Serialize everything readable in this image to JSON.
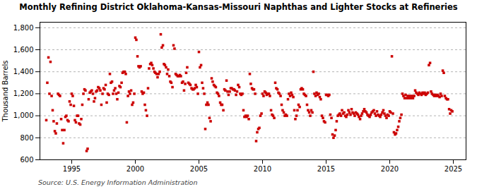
{
  "chart_data": {
    "type": "scatter",
    "title": "Monthly Refining District Oklahoma-Kansas-Missouri Naphthas and Lighter Stocks at Refineries",
    "ylabel": "Thousand Barrels",
    "source": "Source: U.S. Energy Information Administration",
    "color": "#cc0000",
    "marker": "square",
    "grid": "y",
    "xlim": [
      1992.5,
      2026.0
    ],
    "xticks": [
      1995,
      2000,
      2005,
      2010,
      2015,
      2020,
      2025
    ],
    "ylim": [
      600,
      1850
    ],
    "yticks": [
      600,
      800,
      {
        "value": 1000,
        "label": "1,000"
      },
      {
        "value": 1200,
        "label": "1,200"
      },
      {
        "value": 1400,
        "label": "1,400"
      },
      {
        "value": 1600,
        "label": "1,600"
      },
      {
        "value": 1800,
        "label": "1,800"
      }
    ],
    "x": [
      1993.0,
      1993.08,
      1993.17,
      1993.25,
      1993.33,
      1993.42,
      1993.5,
      1993.58,
      1993.67,
      1993.75,
      1993.83,
      1993.92,
      1994.0,
      1994.08,
      1994.17,
      1994.25,
      1994.33,
      1994.42,
      1994.5,
      1994.58,
      1994.67,
      1994.75,
      1994.83,
      1994.92,
      1995.0,
      1995.08,
      1995.17,
      1995.25,
      1995.33,
      1995.42,
      1995.5,
      1995.58,
      1995.67,
      1995.75,
      1995.83,
      1995.92,
      1996.0,
      1996.08,
      1996.17,
      1996.25,
      1996.33,
      1996.42,
      1996.5,
      1996.58,
      1996.67,
      1996.75,
      1996.83,
      1996.92,
      1997.0,
      1997.08,
      1997.17,
      1997.25,
      1997.33,
      1997.42,
      1997.5,
      1997.58,
      1997.67,
      1997.75,
      1997.83,
      1997.92,
      1998.0,
      1998.08,
      1998.17,
      1998.25,
      1998.33,
      1998.42,
      1998.5,
      1998.58,
      1998.67,
      1998.75,
      1998.83,
      1998.92,
      1999.0,
      1999.08,
      1999.17,
      1999.25,
      1999.33,
      1999.42,
      1999.5,
      1999.58,
      1999.67,
      1999.75,
      1999.83,
      1999.92,
      2000.0,
      2000.08,
      2000.17,
      2000.25,
      2000.33,
      2000.42,
      2000.5,
      2000.58,
      2000.67,
      2000.75,
      2000.83,
      2000.92,
      2001.0,
      2001.08,
      2001.17,
      2001.25,
      2001.33,
      2001.42,
      2001.5,
      2001.58,
      2001.67,
      2001.75,
      2001.83,
      2001.92,
      2002.0,
      2002.08,
      2002.17,
      2002.25,
      2002.33,
      2002.42,
      2002.5,
      2002.58,
      2002.67,
      2002.75,
      2002.83,
      2002.92,
      2003.0,
      2003.08,
      2003.17,
      2003.25,
      2003.33,
      2003.42,
      2003.5,
      2003.58,
      2003.67,
      2003.75,
      2003.83,
      2003.92,
      2004.0,
      2004.08,
      2004.17,
      2004.25,
      2004.33,
      2004.42,
      2004.5,
      2004.58,
      2004.67,
      2004.75,
      2004.83,
      2004.92,
      2005.0,
      2005.08,
      2005.17,
      2005.25,
      2005.33,
      2005.42,
      2005.5,
      2005.58,
      2005.67,
      2005.75,
      2005.83,
      2005.92,
      2006.0,
      2006.08,
      2006.17,
      2006.25,
      2006.33,
      2006.42,
      2006.5,
      2006.58,
      2006.67,
      2006.75,
      2006.83,
      2006.92,
      2007.0,
      2007.08,
      2007.17,
      2007.25,
      2007.33,
      2007.42,
      2007.5,
      2007.58,
      2007.67,
      2007.75,
      2007.83,
      2007.92,
      2008.0,
      2008.08,
      2008.17,
      2008.25,
      2008.33,
      2008.42,
      2008.5,
      2008.58,
      2008.67,
      2008.75,
      2008.83,
      2008.92,
      2009.0,
      2009.08,
      2009.17,
      2009.25,
      2009.33,
      2009.42,
      2009.5,
      2009.58,
      2009.67,
      2009.75,
      2009.83,
      2009.92,
      2010.0,
      2010.08,
      2010.17,
      2010.25,
      2010.33,
      2010.42,
      2010.5,
      2010.58,
      2010.67,
      2010.75,
      2010.83,
      2010.92,
      2011.0,
      2011.08,
      2011.17,
      2011.25,
      2011.33,
      2011.42,
      2011.5,
      2011.58,
      2011.67,
      2011.75,
      2011.83,
      2011.92,
      2012.0,
      2012.08,
      2012.17,
      2012.25,
      2012.33,
      2012.42,
      2012.5,
      2012.58,
      2012.67,
      2012.75,
      2012.83,
      2012.92,
      2013.0,
      2013.08,
      2013.17,
      2013.25,
      2013.33,
      2013.42,
      2013.5,
      2013.58,
      2013.67,
      2013.75,
      2013.83,
      2013.92,
      2014.0,
      2014.08,
      2014.17,
      2014.25,
      2014.33,
      2014.42,
      2014.5,
      2014.58,
      2014.67,
      2014.75,
      2014.83,
      2014.92,
      2015.0,
      2015.08,
      2015.17,
      2015.25,
      2015.33,
      2015.42,
      2015.5,
      2015.58,
      2015.67,
      2015.75,
      2015.83,
      2015.92,
      2016.0,
      2016.08,
      2016.17,
      2016.25,
      2016.33,
      2016.42,
      2016.5,
      2016.58,
      2016.67,
      2016.75,
      2016.83,
      2016.92,
      2017.0,
      2017.08,
      2017.17,
      2017.25,
      2017.33,
      2017.42,
      2017.5,
      2017.58,
      2017.67,
      2017.75,
      2017.83,
      2017.92,
      2018.0,
      2018.08,
      2018.17,
      2018.25,
      2018.33,
      2018.42,
      2018.5,
      2018.58,
      2018.67,
      2018.75,
      2018.83,
      2018.92,
      2019.0,
      2019.08,
      2019.17,
      2019.25,
      2019.33,
      2019.42,
      2019.5,
      2019.58,
      2019.67,
      2019.75,
      2019.83,
      2019.92,
      2020.0,
      2020.08,
      2020.17,
      2020.25,
      2020.33,
      2020.42,
      2020.5,
      2020.58,
      2020.67,
      2020.75,
      2020.83,
      2020.92,
      2021.0,
      2021.08,
      2021.17,
      2021.25,
      2021.33,
      2021.42,
      2021.5,
      2021.58,
      2021.67,
      2021.75,
      2021.83,
      2021.92,
      2022.0,
      2022.08,
      2022.17,
      2022.25,
      2022.33,
      2022.42,
      2022.5,
      2022.58,
      2022.67,
      2022.75,
      2022.83,
      2022.92,
      2023.0,
      2023.08,
      2023.17,
      2023.25,
      2023.33,
      2023.42,
      2023.5,
      2023.58,
      2023.67,
      2023.75,
      2023.83,
      2023.92,
      2024.0,
      2024.08,
      2024.17,
      2024.25,
      2024.33,
      2024.42,
      2024.5,
      2024.58,
      2024.67,
      2024.75,
      2024.83,
      2024.92
    ],
    "values": [
      960,
      1300,
      1530,
      1200,
      1490,
      1180,
      1050,
      950,
      860,
      840,
      930,
      1200,
      1190,
      1180,
      970,
      870,
      750,
      870,
      990,
      1000,
      960,
      950,
      1130,
      1100,
      1200,
      1180,
      1090,
      960,
      940,
      1000,
      1000,
      930,
      920,
      970,
      1100,
      1200,
      1240,
      1230,
      680,
      700,
      1150,
      1210,
      1220,
      1230,
      1200,
      1130,
      1160,
      1220,
      1230,
      1260,
      1250,
      1230,
      1100,
      1200,
      1250,
      1240,
      1280,
      1120,
      1200,
      1190,
      1380,
      1300,
      1310,
      1200,
      1230,
      1250,
      1200,
      1150,
      1210,
      1270,
      1260,
      1300,
      1390,
      1400,
      1400,
      1380,
      940,
      1180,
      1220,
      1200,
      1230,
      1100,
      1120,
      1200,
      1710,
      1690,
      1540,
      1450,
      1440,
      1450,
      1220,
      1200,
      1210,
      1100,
      1050,
      1000,
      1250,
      1430,
      1470,
      1480,
      1460,
      1430,
      1400,
      1390,
      1380,
      1350,
      1380,
      1400,
      1740,
      1620,
      1640,
      1470,
      1460,
      1440,
      1380,
      1420,
      1360,
      1310,
      1300,
      1260,
      1640,
      1610,
      1380,
      1370,
      1360,
      1360,
      1370,
      1360,
      1300,
      1310,
      1230,
      1290,
      1390,
      1440,
      1300,
      1290,
      1280,
      1250,
      1240,
      1240,
      1250,
      1280,
      1260,
      1200,
      1580,
      1440,
      1460,
      1300,
      1250,
      1200,
      880,
      1100,
      1120,
      1100,
      980,
      950,
      1340,
      1310,
      1280,
      1270,
      1260,
      1210,
      1200,
      1180,
      1120,
      1100,
      1100,
      1050,
      1240,
      1230,
      1320,
      1220,
      1190,
      1220,
      1250,
      1250,
      1240,
      1240,
      1230,
      1190,
      1220,
      1280,
      1260,
      1200,
      1190,
      1200,
      1050,
      990,
      1000,
      990,
      1000,
      970,
      1380,
      1290,
      1250,
      1240,
      1240,
      1200,
      770,
      850,
      880,
      890,
      1000,
      1020,
      1200,
      1180,
      1220,
      1210,
      1190,
      1200,
      1200,
      1180,
      1050,
      1010,
      1000,
      980,
      1300,
      1250,
      1240,
      1210,
      1200,
      1180,
      1100,
      1050,
      1030,
      1000,
      1010,
      1000,
      1150,
      1200,
      1180,
      1210,
      1190,
      1170,
      1050,
      970,
      1000,
      1050,
      1100,
      1080,
      1240,
      1250,
      1240,
      1200,
      1190,
      1180,
      1100,
      1050,
      1030,
      1000,
      1050,
      1030,
      1400,
      1200,
      1180,
      1210,
      1190,
      1200,
      1170,
      1150,
      1000,
      980,
      950,
      940,
      1190,
      1190,
      1180,
      1190,
      1010,
      980,
      830,
      800,
      820,
      870,
      950,
      1000,
      1010,
      1020,
      1000,
      1050,
      1020,
      1030,
      1000,
      990,
      1010,
      1050,
      1030,
      1010,
      1060,
      1030,
      1020,
      1000,
      1030,
      1020,
      1010,
      990,
      970,
      1000,
      1020,
      1040,
      1060,
      1040,
      1030,
      1010,
      1000,
      990,
      1010,
      1030,
      1040,
      1050,
      1020,
      1000,
      1040,
      1010,
      1000,
      990,
      1010,
      1030,
      1050,
      1020,
      1000,
      980,
      1010,
      1000,
      1040,
      1030,
      1540,
      1020,
      850,
      830,
      840,
      870,
      900,
      950,
      980,
      1010,
      1200,
      1180,
      1160,
      1190,
      1160,
      1180,
      1160,
      1180,
      1160,
      1180,
      1160,
      1180,
      1230,
      1210,
      1200,
      1190,
      1210,
      1200,
      1190,
      1210,
      1200,
      1210,
      1190,
      1200,
      1210,
      1460,
      1480,
      1220,
      1200,
      1190,
      1180,
      1190,
      1180,
      1190,
      1180,
      1170,
      1200,
      1180,
      1410,
      1390,
      1180,
      1160,
      1150,
      1150,
      1060,
      1020,
      1050,
      1040
    ]
  }
}
